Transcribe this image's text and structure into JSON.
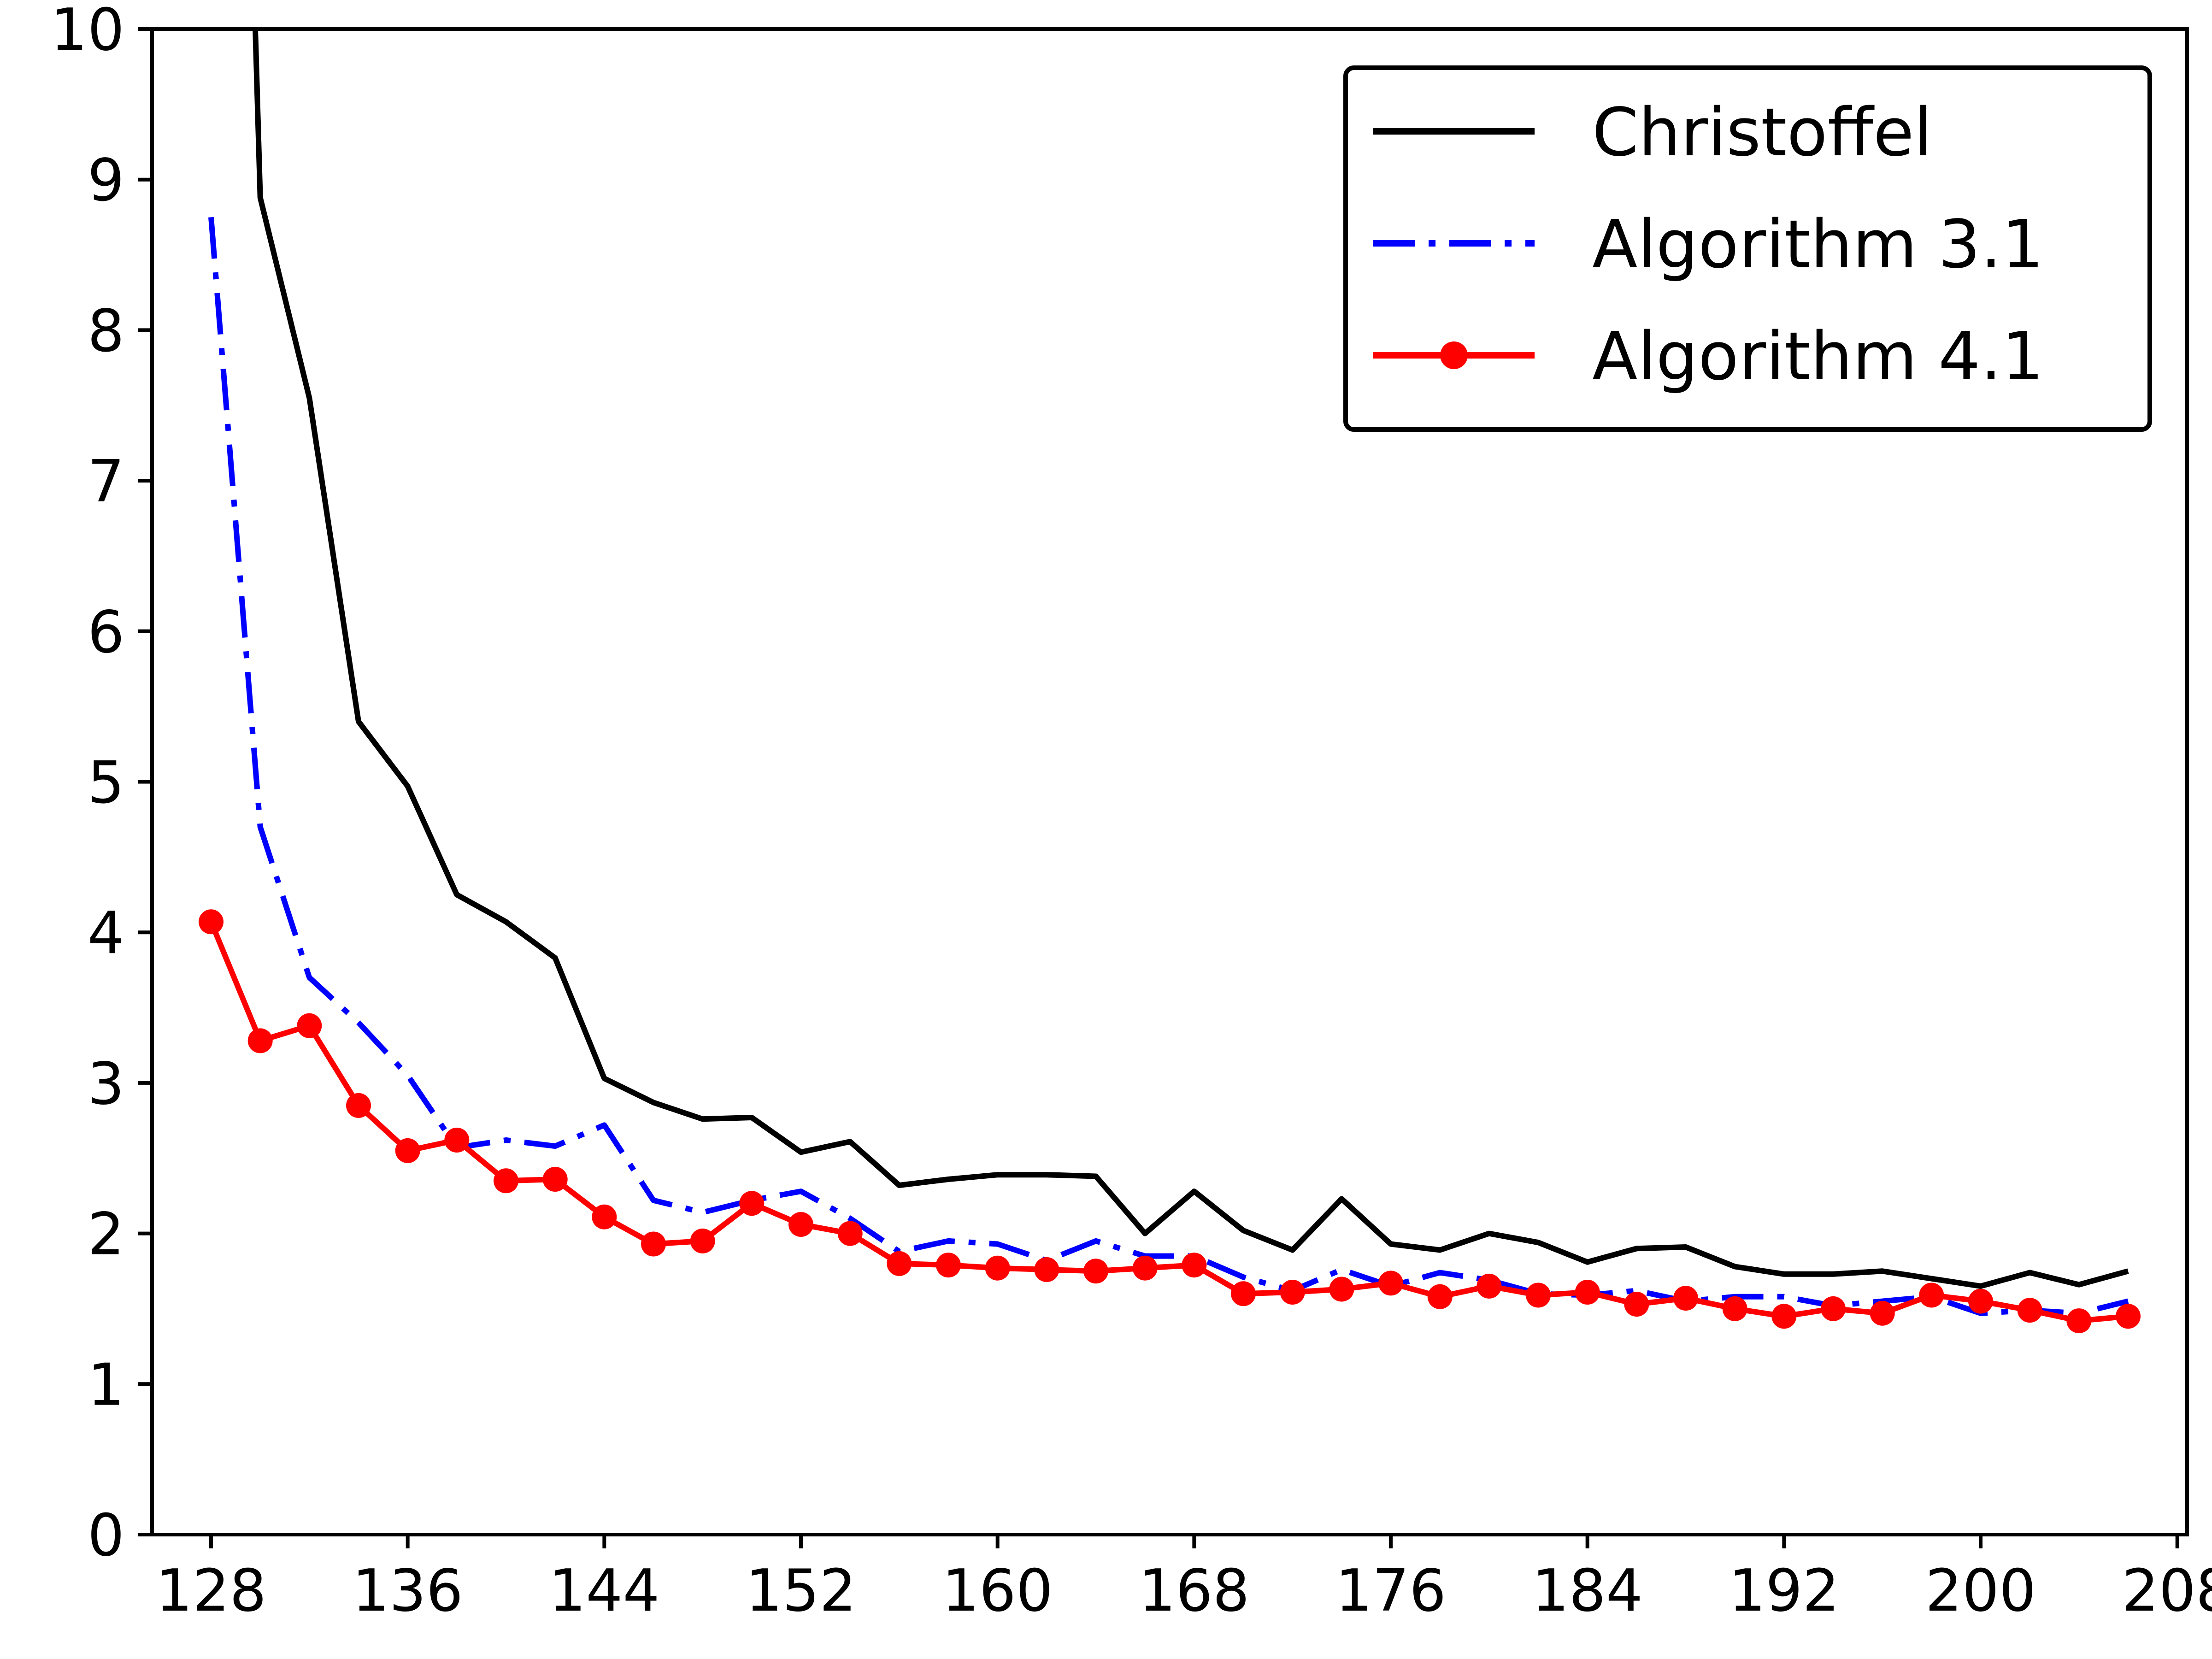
{
  "chart_data": {
    "type": "line",
    "title": "",
    "xlabel": "",
    "ylabel": "",
    "xlim": [
      125.6,
      208.4
    ],
    "ylim": [
      0,
      10
    ],
    "xticks": [
      128,
      136,
      144,
      152,
      160,
      168,
      176,
      184,
      192,
      200,
      208
    ],
    "yticks": [
      0,
      1,
      2,
      3,
      4,
      5,
      6,
      7,
      8,
      9,
      10
    ],
    "grid": false,
    "legend_position": "top-right",
    "x": [
      128,
      130,
      132,
      134,
      136,
      138,
      140,
      142,
      144,
      146,
      148,
      150,
      152,
      154,
      156,
      158,
      160,
      162,
      164,
      166,
      168,
      170,
      172,
      174,
      176,
      178,
      180,
      182,
      184,
      186,
      188,
      190,
      192,
      194,
      196,
      198,
      200,
      202,
      204,
      206
    ],
    "series": [
      {
        "name": "Christoffel",
        "color": "#000000",
        "style": "solid",
        "marker": "none",
        "values": [
          null,
          8.88,
          7.55,
          5.4,
          4.97,
          4.25,
          4.07,
          3.83,
          3.03,
          2.87,
          2.76,
          2.77,
          2.54,
          2.61,
          2.32,
          2.36,
          2.39,
          2.39,
          2.38,
          2.0,
          2.28,
          2.02,
          1.89,
          2.23,
          1.93,
          1.89,
          2.0,
          1.94,
          1.81,
          1.9,
          1.91,
          1.78,
          1.73,
          1.73,
          1.75,
          1.7,
          1.65,
          1.74,
          1.66,
          1.75
        ]
      },
      {
        "name": "Algorithm 3.1",
        "color": "#0000ff",
        "style": "dashdot",
        "marker": "none",
        "values": [
          8.75,
          4.7,
          3.7,
          3.4,
          3.05,
          2.57,
          2.62,
          2.58,
          2.72,
          2.22,
          2.14,
          2.22,
          2.28,
          2.1,
          1.88,
          1.95,
          1.93,
          1.82,
          1.95,
          1.85,
          1.85,
          1.71,
          1.62,
          1.76,
          1.65,
          1.74,
          1.69,
          1.6,
          1.59,
          1.62,
          1.55,
          1.58,
          1.58,
          1.52,
          1.55,
          1.58,
          1.47,
          1.49,
          1.47,
          1.55
        ]
      },
      {
        "name": "Algorithm 4.1",
        "color": "#ff0000",
        "style": "solid",
        "marker": "circle",
        "values": [
          4.07,
          3.28,
          3.38,
          2.85,
          2.55,
          2.62,
          2.35,
          2.36,
          2.11,
          1.93,
          1.95,
          2.2,
          2.06,
          2.0,
          1.8,
          1.79,
          1.77,
          1.76,
          1.75,
          1.77,
          1.79,
          1.6,
          1.61,
          1.63,
          1.67,
          1.58,
          1.65,
          1.59,
          1.61,
          1.53,
          1.57,
          1.5,
          1.45,
          1.5,
          1.47,
          1.59,
          1.55,
          1.49,
          1.42,
          1.45
        ]
      }
    ],
    "christoffel_offscale_start": {
      "x": 129.8,
      "y": 10
    }
  }
}
